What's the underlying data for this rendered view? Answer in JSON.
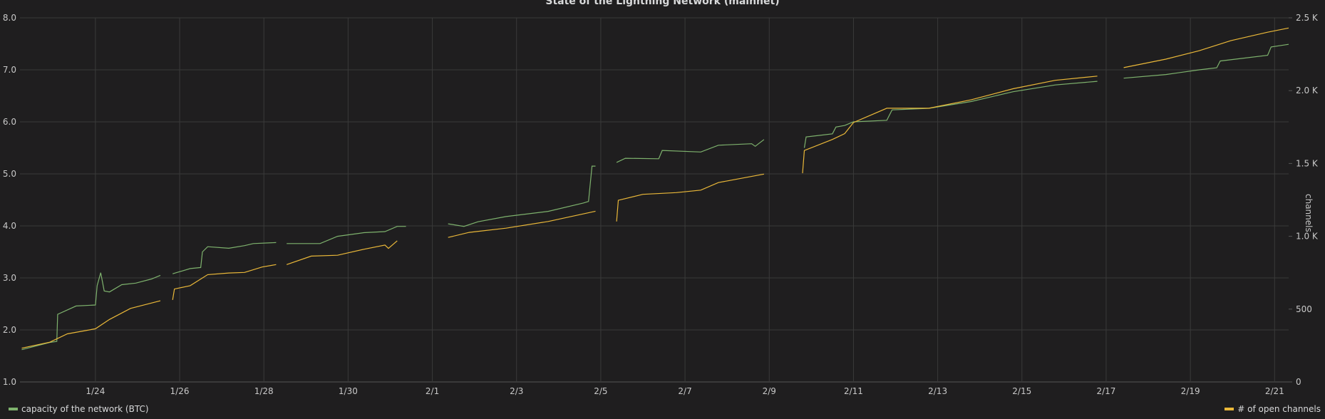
{
  "chart_data": {
    "type": "line",
    "title": "State of the Lightning Network (mainnet)",
    "xlim": [
      "1/22 05:00",
      "2/21 08:00"
    ],
    "x_ticks": [
      "1/24",
      "1/26",
      "1/28",
      "1/30",
      "2/1",
      "2/3",
      "2/5",
      "2/7",
      "2/9",
      "2/11",
      "2/13",
      "2/15",
      "2/17",
      "2/19",
      "2/21"
    ],
    "y_left": {
      "label": "",
      "lim": [
        1.0,
        8.0
      ],
      "ticks": [
        "1.0",
        "2.0",
        "3.0",
        "4.0",
        "5.0",
        "6.0",
        "7.0",
        "8.0"
      ]
    },
    "y_right": {
      "label": "channels",
      "lim": [
        0,
        2500
      ],
      "ticks": [
        "0",
        "500",
        "1.0 K",
        "1.5 K",
        "2.0 K",
        "2.5 K"
      ]
    },
    "grid": true,
    "legend": "bottom",
    "series": [
      {
        "name": "capacity of the network (BTC)",
        "axis": "left",
        "color": "#7eb26d",
        "segments": [
          [
            [
              "1/22 06:00",
              1.62
            ],
            [
              "1/22 22:00",
              1.76
            ],
            [
              "1/23 02:00",
              1.78
            ],
            [
              "1/23 02:30",
              2.3
            ],
            [
              "1/23 13:00",
              2.46
            ],
            [
              "1/24 00:00",
              2.48
            ],
            [
              "1/24 01:00",
              2.85
            ],
            [
              "1/24 03:00",
              3.1
            ],
            [
              "1/24 05:00",
              2.75
            ],
            [
              "1/24 08:00",
              2.73
            ],
            [
              "1/24 15:00",
              2.87
            ],
            [
              "1/24 23:00",
              2.9
            ],
            [
              "1/25 08:00",
              2.98
            ],
            [
              "1/25 13:00",
              3.05
            ]
          ],
          [
            [
              "1/25 20:00",
              3.08
            ],
            [
              "1/26 06:00",
              3.18
            ],
            [
              "1/26 12:00",
              3.2
            ],
            [
              "1/26 13:00",
              3.5
            ],
            [
              "1/26 16:00",
              3.6
            ],
            [
              "1/27 04:00",
              3.57
            ],
            [
              "1/27 13:00",
              3.62
            ],
            [
              "1/27 18:00",
              3.66
            ],
            [
              "1/28 07:00",
              3.68
            ]
          ],
          [
            [
              "1/28 13:00",
              3.66
            ],
            [
              "1/29 08:00",
              3.66
            ],
            [
              "1/29 18:00",
              3.8
            ],
            [
              "1/30 09:00",
              3.87
            ],
            [
              "1/30 21:00",
              3.89
            ],
            [
              "1/31 04:00",
              3.99
            ],
            [
              "1/31 09:00",
              3.99
            ]
          ],
          [
            [
              "2/1 09:00",
              4.04
            ],
            [
              "2/1 18:00",
              3.99
            ],
            [
              "2/2 02:00",
              4.08
            ],
            [
              "2/2 18:00",
              4.18
            ],
            [
              "2/3 18:00",
              4.28
            ],
            [
              "2/4 14:00",
              4.44
            ],
            [
              "2/4 17:00",
              4.47
            ],
            [
              "2/4 19:00",
              5.15
            ],
            [
              "2/4 21:00",
              5.15
            ]
          ],
          [
            [
              "2/5 09:00",
              5.22
            ],
            [
              "2/5 14:00",
              5.3
            ],
            [
              "2/6 09:00",
              5.29
            ],
            [
              "2/6 11:00",
              5.45
            ],
            [
              "2/7 09:00",
              5.42
            ],
            [
              "2/7 19:00",
              5.55
            ],
            [
              "2/8 14:00",
              5.58
            ],
            [
              "2/8 16:00",
              5.53
            ],
            [
              "2/8 21:00",
              5.66
            ]
          ],
          [
            [
              "2/9 20:00",
              5.5
            ],
            [
              "2/9 21:00",
              5.71
            ],
            [
              "2/10 12:00",
              5.77
            ],
            [
              "2/10 14:00",
              5.9
            ],
            [
              "2/10 19:00",
              5.93
            ],
            [
              "2/11 00:00",
              6.0
            ],
            [
              "2/11 19:00",
              6.03
            ],
            [
              "2/11 22:00",
              6.23
            ],
            [
              "2/12 19:00",
              6.26
            ],
            [
              "2/13 19:00",
              6.39
            ],
            [
              "2/14 19:00",
              6.58
            ],
            [
              "2/15 19:00",
              6.71
            ],
            [
              "2/16 19:00",
              6.78
            ]
          ],
          [
            [
              "2/17 10:00",
              6.84
            ],
            [
              "2/18 10:00",
              6.91
            ],
            [
              "2/19 05:00",
              7.0
            ],
            [
              "2/19 15:00",
              7.04
            ],
            [
              "2/19 17:00",
              7.17
            ],
            [
              "2/20 20:00",
              7.28
            ],
            [
              "2/20 22:00",
              7.44
            ],
            [
              "2/21 08:00",
              7.49
            ]
          ]
        ]
      },
      {
        "name": "# of open channels",
        "axis": "right",
        "color": "#eab839",
        "segments": [
          [
            [
              "1/22 06:00",
              232
            ],
            [
              "1/22 22:00",
              273
            ],
            [
              "1/23 08:00",
              330
            ],
            [
              "1/24 00:00",
              365
            ],
            [
              "1/24 08:00",
              429
            ],
            [
              "1/24 20:00",
              505
            ],
            [
              "1/25 13:00",
              557
            ]
          ],
          [
            [
              "1/25 20:00",
              563
            ],
            [
              "1/25 21:00",
              638
            ],
            [
              "1/26 06:00",
              661
            ],
            [
              "1/26 16:00",
              737
            ],
            [
              "1/27 04:00",
              748
            ],
            [
              "1/27 13:00",
              752
            ],
            [
              "1/27 23:00",
              789
            ],
            [
              "1/28 07:00",
              806
            ]
          ],
          [
            [
              "1/28 13:00",
              806
            ],
            [
              "1/29 03:00",
              864
            ],
            [
              "1/29 18:00",
              870
            ],
            [
              "1/30 09:00",
              911
            ],
            [
              "1/30 21:00",
              940
            ],
            [
              "1/30 23:00",
              917
            ],
            [
              "1/31 04:00",
              969
            ]
          ],
          [
            [
              "2/1 09:00",
              992
            ],
            [
              "2/1 21:00",
              1027
            ],
            [
              "2/2 18:00",
              1056
            ],
            [
              "2/3 18:00",
              1102
            ],
            [
              "2/4 21:00",
              1172
            ]
          ],
          [
            [
              "2/5 09:00",
              1102
            ],
            [
              "2/5 10:00",
              1247
            ],
            [
              "2/6 00:00",
              1288
            ],
            [
              "2/6 19:00",
              1300
            ],
            [
              "2/7 09:00",
              1317
            ],
            [
              "2/7 19:00",
              1369
            ],
            [
              "2/8 21:00",
              1427
            ]
          ],
          [
            [
              "2/9 19:00",
              1433
            ],
            [
              "2/9 20:00",
              1589
            ],
            [
              "2/10 12:00",
              1665
            ],
            [
              "2/10 19:00",
              1705
            ],
            [
              "2/11 00:00",
              1781
            ],
            [
              "2/11 19:00",
              1879
            ],
            [
              "2/12 19:00",
              1879
            ],
            [
              "2/13 19:00",
              1937
            ],
            [
              "2/14 19:00",
              2013
            ],
            [
              "2/15 19:00",
              2071
            ],
            [
              "2/16 19:00",
              2100
            ]
          ],
          [
            [
              "2/17 10:00",
              2158
            ],
            [
              "2/18 10:00",
              2216
            ],
            [
              "2/19 05:00",
              2274
            ],
            [
              "2/19 23:00",
              2343
            ],
            [
              "2/20 20:00",
              2401
            ],
            [
              "2/21 08:00",
              2430
            ]
          ]
        ]
      }
    ]
  }
}
